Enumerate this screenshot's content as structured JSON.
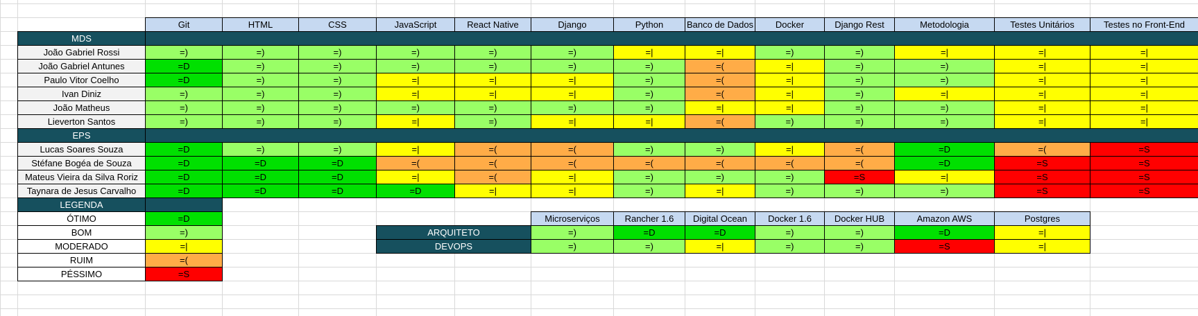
{
  "skills": [
    "Git",
    "HTML",
    "CSS",
    "JavaScript",
    "React Native",
    "Django",
    "Python",
    "Banco de Dados",
    "Docker",
    "Django Rest",
    "Metodologia",
    "Testes Unitários",
    "Testes no Front-End"
  ],
  "groups": [
    {
      "name": "MDS",
      "members": [
        {
          "name": "João Gabriel Rossi",
          "values": [
            "=)",
            "=)",
            "=)",
            "=)",
            "=)",
            "=)",
            "=|",
            "=|",
            "=)",
            "=)",
            "=|",
            "=|",
            "=|"
          ]
        },
        {
          "name": "João Gabriel Antunes",
          "values": [
            "=D",
            "=)",
            "=)",
            "=)",
            "=)",
            "=)",
            "=)",
            "=(",
            "=|",
            "=)",
            "=)",
            "=|",
            "=|"
          ]
        },
        {
          "name": "Paulo Vitor Coelho",
          "values": [
            "=D",
            "=)",
            "=)",
            "=|",
            "=|",
            "=|",
            "=)",
            "=(",
            "=|",
            "=)",
            "=)",
            "=|",
            "=|"
          ]
        },
        {
          "name": "Ivan Diniz",
          "values": [
            "=)",
            "=)",
            "=)",
            "=|",
            "=|",
            "=|",
            "=)",
            "=(",
            "=|",
            "=)",
            "=|",
            "=|",
            "=|"
          ]
        },
        {
          "name": "João Matheus",
          "values": [
            "=)",
            "=)",
            "=)",
            "=)",
            "=)",
            "=)",
            "=)",
            "=|",
            "=|",
            "=)",
            "=)",
            "=|",
            "=|"
          ]
        },
        {
          "name": "Lieverton Santos",
          "values": [
            "=)",
            "=)",
            "=)",
            "=|",
            "=)",
            "=|",
            "=|",
            "=(",
            "=)",
            "=)",
            "=)",
            "=|",
            "=|"
          ]
        }
      ]
    },
    {
      "name": "EPS",
      "members": [
        {
          "name": "Lucas Soares Souza",
          "values": [
            "=D",
            "=)",
            "=)",
            "=|",
            "=(",
            "=(",
            "=)",
            "=)",
            "=|",
            "=(",
            "=D",
            "=(",
            "=S"
          ]
        },
        {
          "name": "Stéfane Bogéa de Souza",
          "values": [
            "=D",
            "=D",
            "=D",
            "=(",
            "=(",
            "=(",
            "=(",
            "=(",
            "=(",
            "=(",
            "=D",
            "=S",
            "=S"
          ]
        },
        {
          "name": "Mateus Vieira da Silva Roriz",
          "values": [
            "=D",
            "=D",
            "=D",
            "=|",
            "=(",
            "=|",
            "=)",
            "=)",
            "=)",
            "=S",
            "=|",
            "=S",
            "=S"
          ]
        },
        {
          "name": "Taynara de Jesus Carvalho",
          "values": [
            "=D",
            "=D",
            "=D",
            "=D",
            "=|",
            "=|",
            "=)",
            "=|",
            "=)",
            "=)",
            "=)",
            "=S",
            "=S"
          ]
        }
      ]
    }
  ],
  "legend": {
    "title": "LEGENDA",
    "items": [
      {
        "label": "ÓTIMO",
        "value": "=D"
      },
      {
        "label": "BOM",
        "value": "=)"
      },
      {
        "label": "MODERADO",
        "value": "=|"
      },
      {
        "label": "RUIM",
        "value": "=("
      },
      {
        "label": "PÉSSIMO",
        "value": "=S"
      }
    ]
  },
  "roles": {
    "columns": [
      "Microserviços",
      "Rancher 1.6",
      "Digital Ocean",
      "Docker 1.6",
      "Docker HUB",
      "Amazon AWS",
      "Postgres"
    ],
    "rows": [
      {
        "name": "ARQUITETO",
        "values": [
          "=)",
          "=D",
          "=D",
          "=)",
          "=)",
          "=D",
          "=|"
        ]
      },
      {
        "name": "DEVOPS",
        "values": [
          "=)",
          "=)",
          "=|",
          "=)",
          "=)",
          "=S",
          "=|"
        ]
      }
    ]
  },
  "colors": {
    "=D": "#00e000",
    "=)": "#99ff66",
    "=|": "#ffff00",
    "=(": "#ffac47",
    "=S": "#ff0000",
    "header": "#c6d9f1",
    "group": "#16505e"
  }
}
